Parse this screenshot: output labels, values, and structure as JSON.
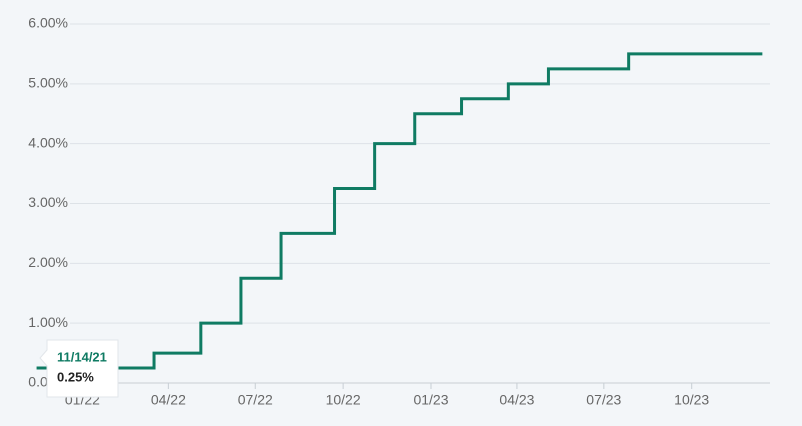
{
  "chart_data": {
    "type": "step",
    "x": [
      "11/14/21",
      "03/17/22",
      "05/05/22",
      "06/16/22",
      "07/28/22",
      "09/22/22",
      "11/03/22",
      "12/15/22",
      "02/02/23",
      "03/23/23",
      "05/04/23",
      "07/27/23",
      "12/14/23"
    ],
    "series": [
      {
        "color": "#0f7b63",
        "values": [
          0.25,
          0.5,
          1,
          1.75,
          2.5,
          3.25,
          4,
          4.5,
          4.75,
          5,
          5.25,
          5.5,
          5.5
        ]
      }
    ],
    "xlim": [
      "12/19/21",
      "12/22/23"
    ],
    "xticks": [
      {
        "value": "01/01/22",
        "label": "01/22"
      },
      {
        "value": "04/01/22",
        "label": "04/22"
      },
      {
        "value": "07/01/22",
        "label": "07/22"
      },
      {
        "value": "10/01/22",
        "label": "10/22"
      },
      {
        "value": "01/01/23",
        "label": "01/23"
      },
      {
        "value": "04/01/23",
        "label": "04/23"
      },
      {
        "value": "07/01/23",
        "label": "07/23"
      },
      {
        "value": "10/01/23",
        "label": "10/23"
      }
    ],
    "ylim": [
      0,
      6
    ],
    "yticks": [
      {
        "value": 0,
        "label": "0.00%"
      },
      {
        "value": 1,
        "label": "1.00%"
      },
      {
        "value": 2,
        "label": "2.00%"
      },
      {
        "value": 3,
        "label": "3.00%"
      },
      {
        "value": 4,
        "label": "4.00%"
      },
      {
        "value": 5,
        "label": "5.00%"
      },
      {
        "value": 6,
        "label": "6.00%"
      }
    ],
    "grid": true,
    "tooltip": {
      "date": "11/14/21",
      "value": "0.25%"
    }
  }
}
